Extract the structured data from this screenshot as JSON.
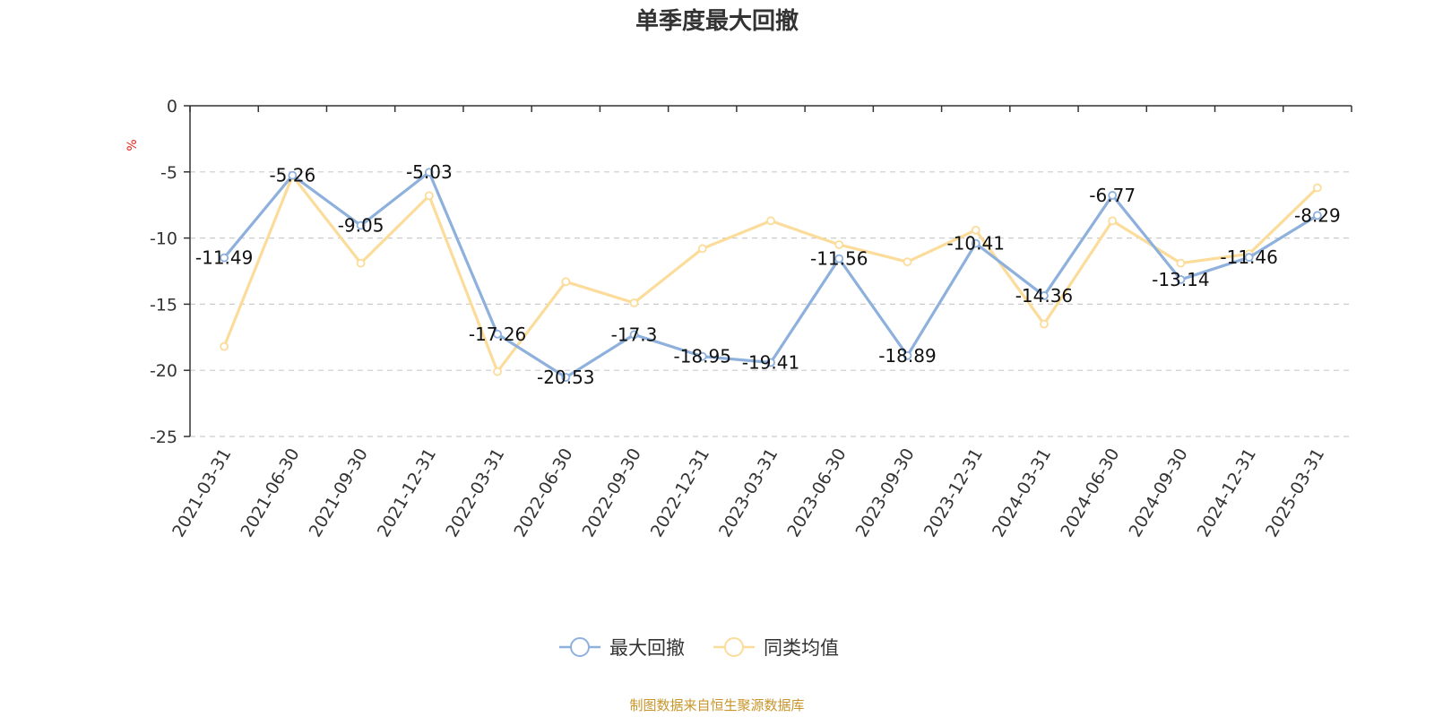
{
  "chart_data": {
    "type": "line",
    "title": "单季度最大回撤",
    "unit_label": "%",
    "categories": [
      "2021-03-31",
      "2021-06-30",
      "2021-09-30",
      "2021-12-31",
      "2022-03-31",
      "2022-06-30",
      "2022-09-30",
      "2022-12-31",
      "2023-03-31",
      "2023-06-30",
      "2023-09-30",
      "2023-12-31",
      "2024-03-31",
      "2024-06-30",
      "2024-09-30",
      "2024-12-31",
      "2025-03-31"
    ],
    "ylim": [
      -25,
      0
    ],
    "yticks": [
      0,
      -5,
      -10,
      -15,
      -20,
      -25
    ],
    "grid": true,
    "legend_position": "bottom",
    "series": [
      {
        "name": "最大回撤",
        "color": "#8eb0dc",
        "show_labels": true,
        "values": [
          -11.49,
          -5.26,
          -9.05,
          -5.03,
          -17.26,
          -20.53,
          -17.3,
          -18.95,
          -19.41,
          -11.56,
          -18.89,
          -10.41,
          -14.36,
          -6.77,
          -13.14,
          -11.46,
          -8.29
        ]
      },
      {
        "name": "同类均值",
        "color": "#fbdc9a",
        "show_labels": false,
        "values": [
          -18.2,
          -5.3,
          -11.9,
          -6.8,
          -20.1,
          -13.3,
          -14.9,
          -10.8,
          -8.7,
          -10.5,
          -11.8,
          -9.4,
          -16.5,
          -8.7,
          -11.9,
          -11.2,
          -6.2
        ]
      }
    ]
  },
  "footer": {
    "source": "制图数据来自恒生聚源数据库"
  }
}
